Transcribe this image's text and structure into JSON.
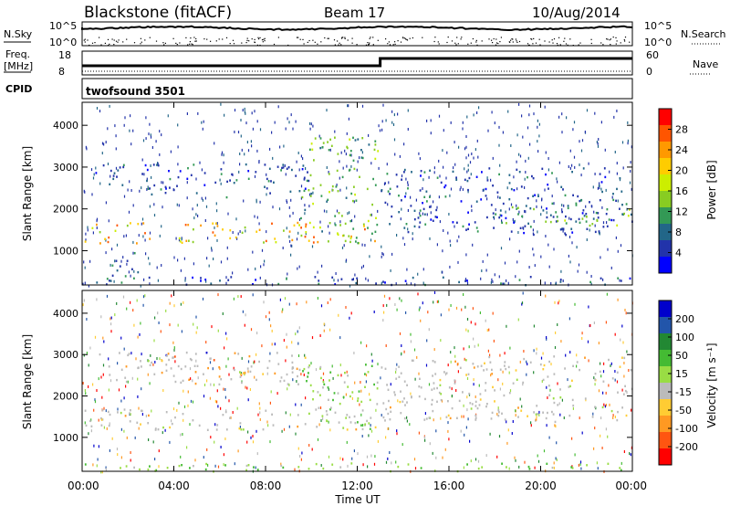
{
  "header": {
    "station": "Blackstone (fitACF)",
    "beam": "Beam 17",
    "date": "10/Aug/2014"
  },
  "summary": {
    "nsky_label": "N.Sky",
    "nsearch_label": "N.Search",
    "freq_label_1": "Freq.",
    "freq_label_2": "[MHz]",
    "nave_label": "Nave",
    "cpid_label": "CPID",
    "program": "twofsound 3501",
    "noise_ticks": [
      "10^5",
      "10^0"
    ],
    "noise_ticks_right": [
      "10^5",
      "10^0"
    ],
    "freq_ticks": [
      "18",
      "8"
    ],
    "nave_ticks": [
      "60",
      "0"
    ]
  },
  "chart_data": [
    {
      "type": "heatmap",
      "name": "power",
      "x": [
        0,
        24
      ],
      "ylabel": "Slant Range [km]",
      "ylim": [
        180,
        4550
      ],
      "y_ticks": [
        "4000",
        "3000",
        "2000",
        "1000"
      ],
      "colorbar": {
        "label": "Power [dB]",
        "ticks": [
          "28",
          "24",
          "20",
          "16",
          "12",
          "8",
          "4"
        ],
        "colors": [
          "#ff0000",
          "#ff5500",
          "#ff9900",
          "#ffcc00",
          "#ccee00",
          "#88cc22",
          "#339955",
          "#226688",
          "#2233aa",
          "#0000ff"
        ]
      },
      "bands": [
        {
          "t0": 0.0,
          "t1": 12.9,
          "r0": 1200,
          "r1": 1700,
          "level": "high"
        },
        {
          "t0": 0.5,
          "t1": 10.0,
          "r0": 2300,
          "r1": 3100,
          "level": "low"
        },
        {
          "t0": 9.5,
          "t1": 12.9,
          "r0": 1200,
          "r1": 3800,
          "level": "mid"
        },
        {
          "t0": 13.0,
          "t1": 24.0,
          "r0": 1400,
          "r1": 3000,
          "level": "low"
        },
        {
          "t0": 18.0,
          "t1": 24.0,
          "r0": 1600,
          "r1": 2100,
          "level": "mid"
        },
        {
          "t0": 0.0,
          "t1": 24.0,
          "r0": 200,
          "r1": 400,
          "level": "low"
        },
        {
          "t0": 1.0,
          "t1": 2.5,
          "r0": 300,
          "r1": 1000,
          "level": "low"
        }
      ]
    },
    {
      "type": "heatmap",
      "name": "velocity",
      "x": [
        0,
        24
      ],
      "xlabel": "Time UT",
      "x_ticks": [
        "00:00",
        "04:00",
        "08:00",
        "12:00",
        "16:00",
        "20:00",
        "00:00"
      ],
      "ylabel": "Slant Range [km]",
      "ylim": [
        180,
        4550
      ],
      "y_ticks": [
        "4000",
        "3000",
        "2000",
        "1000"
      ],
      "colorbar": {
        "label": "Velocity [m s⁻¹]",
        "ticks": [
          "200",
          "100",
          "50",
          "15",
          "-15",
          "-50",
          "-100",
          "-200"
        ],
        "colors": [
          "#0000cc",
          "#2255aa",
          "#228833",
          "#44bb33",
          "#99dd44",
          "#bbbbbb",
          "#ffcc33",
          "#ff9922",
          "#ff5511",
          "#ff0000"
        ]
      },
      "bands": [
        {
          "t0": 0.0,
          "t1": 12.9,
          "r0": 1200,
          "r1": 1700,
          "level": "ground"
        },
        {
          "t0": 0.5,
          "t1": 10.0,
          "r0": 2300,
          "r1": 3100,
          "level": "ground"
        },
        {
          "t0": 9.5,
          "t1": 12.9,
          "r0": 1200,
          "r1": 2800,
          "level": "positive"
        },
        {
          "t0": 13.0,
          "t1": 24.0,
          "r0": 1400,
          "r1": 3000,
          "level": "ground"
        },
        {
          "t0": 0.0,
          "t1": 24.0,
          "r0": 200,
          "r1": 400,
          "level": "positive"
        },
        {
          "t0": 3.5,
          "t1": 6.0,
          "r0": 2600,
          "r1": 3100,
          "level": "mixed"
        }
      ]
    }
  ]
}
